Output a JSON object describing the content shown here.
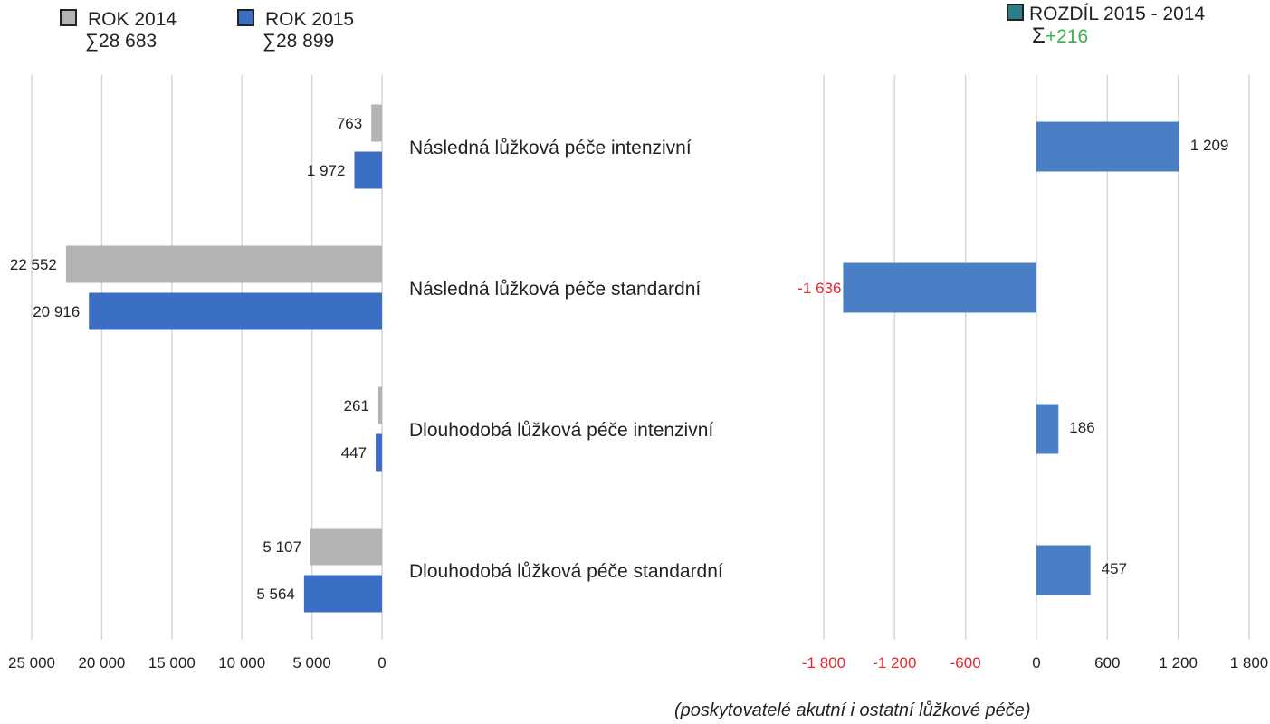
{
  "legend": {
    "y2014": {
      "label": "ROK 2014",
      "sum": "∑28 683",
      "color": "#b3b3b3"
    },
    "y2015": {
      "label": "ROK 2015",
      "sum": "∑28 899",
      "color": "#3a6fc4"
    },
    "diff": {
      "label": "ROZDÍL 2015 - 2014",
      "sum_symbol": "Σ",
      "sum_value": "+216",
      "color": "#2e7d8c",
      "sum_color": "#3cb34a"
    }
  },
  "footnote": "(poskytovatelé akutní i ostatní lůžkové péče)",
  "colors": {
    "gray": "#b3b3b3",
    "blue": "#3a6fc4",
    "diff_bar": "#4a7fc6",
    "negative_text": "#e8242c",
    "grid": "#d6d6d6",
    "text": "#222222"
  },
  "chart_data": [
    {
      "type": "bar",
      "orientation": "horizontal-reversed",
      "categories": [
        "Následná lůžková péče intenzivní",
        "Následná lůžková péče standardní",
        "Dlouhodobá lůžková péče intenzivní",
        "Dlouhodobá lůžková péče standardní"
      ],
      "series": [
        {
          "name": "ROK 2014",
          "values": [
            763,
            22552,
            261,
            5107
          ],
          "labels": [
            "763",
            "22 552",
            "261",
            "5 107"
          ]
        },
        {
          "name": "ROK 2015",
          "values": [
            1972,
            20916,
            447,
            5564
          ],
          "labels": [
            "1 972",
            "20 916",
            "447",
            "5 564"
          ]
        }
      ],
      "xlim": [
        0,
        25000
      ],
      "xticks": [
        25000,
        20000,
        15000,
        10000,
        5000,
        0
      ],
      "xtick_labels": [
        "25 000",
        "20 000",
        "15 000",
        "10 000",
        "5 000",
        "0"
      ],
      "grid": true
    },
    {
      "type": "bar",
      "orientation": "horizontal",
      "categories": [
        "Následná lůžková péče intenzivní",
        "Následná lůžková péče standardní",
        "Dlouhodobá lůžková péče intenzivní",
        "Dlouhodobá lůžková péče standardní"
      ],
      "series": [
        {
          "name": "ROZDÍL 2015 - 2014",
          "values": [
            1209,
            -1636,
            186,
            457
          ],
          "labels": [
            "1 209",
            "-1 636",
            "186",
            "457"
          ]
        }
      ],
      "xlim": [
        -1800,
        1800
      ],
      "xticks": [
        -1800,
        -1200,
        -600,
        0,
        600,
        1200,
        1800
      ],
      "xtick_labels": [
        "-1 800",
        "-1 200",
        "-600",
        "0",
        "600",
        "1 200",
        "1 800"
      ],
      "grid": true
    }
  ]
}
